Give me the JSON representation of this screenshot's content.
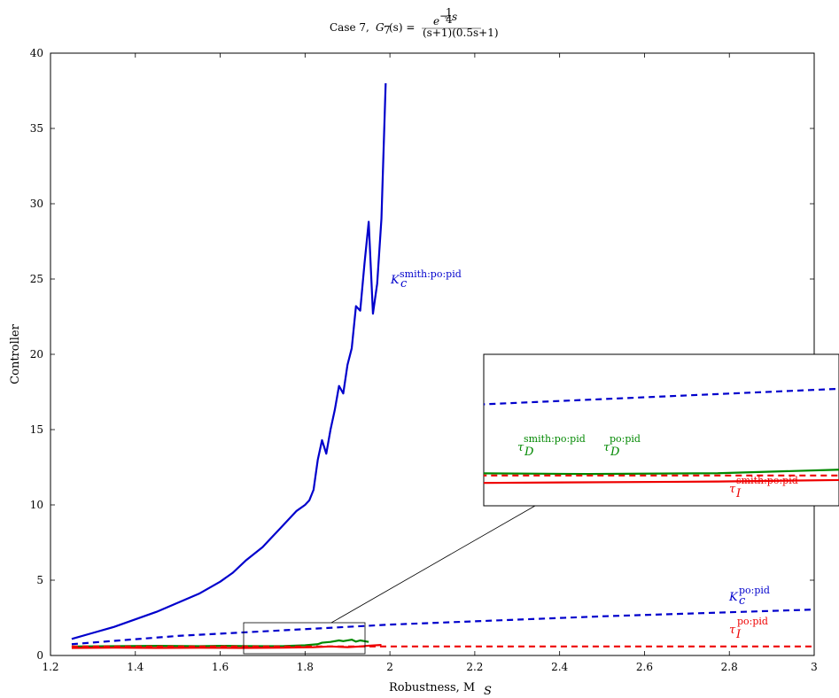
{
  "chart_data": {
    "type": "line",
    "title": "Case 7, G7(s) = e^{-1/4 s} / ((s+1)(0.5s+1))",
    "title_parts": {
      "prefix": "Case 7, ",
      "G": "G",
      "G_sub": "7",
      "arg": "(s) =",
      "num_e": "e",
      "num_exp": "−",
      "num_frac_n": "1",
      "num_frac_d": "4",
      "num_s": "s",
      "den": "(s+1)(0.5s+1)"
    },
    "xlabel": "Robustness, M",
    "xlabel_sub": "S",
    "ylabel": "Controller",
    "xlim": [
      1.2,
      3.0
    ],
    "ylim": [
      0,
      40
    ],
    "xticks": [
      1.2,
      1.4,
      1.6,
      1.8,
      2.0,
      2.2,
      2.4,
      2.6,
      2.8,
      3.0
    ],
    "xtick_labels": [
      "1.2",
      "1.4",
      "1.6",
      "1.8",
      "2",
      "2.2",
      "2.4",
      "2.6",
      "2.8",
      "3"
    ],
    "yticks": [
      0,
      5,
      10,
      15,
      20,
      25,
      30,
      35,
      40
    ],
    "ytick_labels": [
      "0",
      "5",
      "10",
      "15",
      "20",
      "25",
      "30",
      "35",
      "40"
    ],
    "grid": false,
    "series": [
      {
        "name": "Kc smith:po:pid",
        "color": "#0000cc",
        "style": "solid",
        "x": [
          1.25,
          1.3,
          1.35,
          1.4,
          1.45,
          1.5,
          1.55,
          1.6,
          1.63,
          1.66,
          1.7,
          1.72,
          1.74,
          1.76,
          1.78,
          1.8,
          1.81,
          1.82,
          1.83,
          1.84,
          1.85,
          1.86,
          1.87,
          1.88,
          1.89,
          1.9,
          1.91,
          1.92,
          1.93,
          1.94,
          1.95,
          1.96,
          1.97,
          1.98,
          1.99
        ],
        "y": [
          1.1,
          1.5,
          1.9,
          2.4,
          2.9,
          3.5,
          4.1,
          4.9,
          5.5,
          6.3,
          7.2,
          7.8,
          8.4,
          9.0,
          9.6,
          10.0,
          10.3,
          11.0,
          13.0,
          14.3,
          13.4,
          15.0,
          16.3,
          17.9,
          17.4,
          19.3,
          20.4,
          23.2,
          22.9,
          26.0,
          28.8,
          22.7,
          24.7,
          29.0,
          38.0
        ]
      },
      {
        "name": "Kc po:pid",
        "color": "#0000cc",
        "style": "dashed",
        "x": [
          1.25,
          1.5,
          2.0,
          2.5,
          3.0
        ],
        "y": [
          0.75,
          1.3,
          2.05,
          2.6,
          3.05
        ]
      },
      {
        "name": "τD smith:po:pid",
        "color": "#008800",
        "style": "solid",
        "x": [
          1.25,
          1.35,
          1.45,
          1.55,
          1.6,
          1.65,
          1.7,
          1.75,
          1.8,
          1.83,
          1.84,
          1.86,
          1.88,
          1.89,
          1.91,
          1.92,
          1.93,
          1.94,
          1.95
        ],
        "y": [
          0.6,
          0.62,
          0.64,
          0.62,
          0.64,
          0.63,
          0.62,
          0.63,
          0.68,
          0.75,
          0.85,
          0.9,
          1.0,
          0.95,
          1.05,
          0.92,
          1.0,
          0.95,
          0.9
        ]
      },
      {
        "name": "τI smith:po:pid",
        "color": "#ee0000",
        "style": "solid",
        "x": [
          1.25,
          1.35,
          1.45,
          1.55,
          1.65,
          1.75,
          1.82,
          1.86,
          1.9,
          1.93,
          1.95,
          1.98
        ],
        "y": [
          0.5,
          0.52,
          0.5,
          0.51,
          0.5,
          0.52,
          0.55,
          0.6,
          0.55,
          0.6,
          0.65,
          0.7
        ]
      },
      {
        "name": "τI po:pid",
        "color": "#ee0000",
        "style": "dashed",
        "x": [
          1.25,
          2.0,
          3.0
        ],
        "y": [
          0.6,
          0.6,
          0.6
        ]
      }
    ],
    "annotations": [
      {
        "text": "K",
        "sub": "c",
        "sup": "smith:po:pid",
        "color": "#0000cc"
      },
      {
        "text": "K",
        "sub": "c",
        "sup": "po:pid",
        "color": "#0000cc"
      },
      {
        "text": "τ",
        "sub": "I",
        "sup": "po:pid",
        "color": "#ee0000"
      },
      {
        "text": "τ",
        "sub": "D",
        "sup": "smith:po:pid",
        "color": "#008800"
      },
      {
        "text": "τ",
        "sub": "D",
        "sup": "po:pid",
        "color": "#008800"
      },
      {
        "text": "τ",
        "sub": "I",
        "sup": "smith:po:pid",
        "color": "#ee0000"
      }
    ],
    "inset": {
      "description": "zoom of region",
      "xlim": [
        1.66,
        1.94
      ],
      "ylim": [
        0.2,
        2.2
      ]
    }
  }
}
